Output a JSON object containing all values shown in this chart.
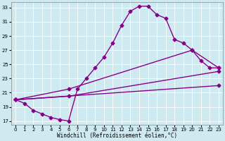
{
  "background_color": "#cfe9f0",
  "line_color": "#880088",
  "marker": "D",
  "markersize": 2.5,
  "linewidth": 1.0,
  "xlabel": "Windchill (Refroidissement éolien,°C)",
  "xlim": [
    -0.5,
    23.5
  ],
  "ylim": [
    16.5,
    33.8
  ],
  "yticks": [
    17,
    19,
    21,
    23,
    25,
    27,
    29,
    31,
    33
  ],
  "xticks": [
    0,
    1,
    2,
    3,
    4,
    5,
    6,
    7,
    8,
    9,
    10,
    11,
    12,
    13,
    14,
    15,
    16,
    17,
    18,
    19,
    20,
    21,
    22,
    23
  ],
  "line1_x": [
    0,
    1,
    2,
    3,
    4,
    5,
    6,
    7,
    8,
    9,
    10,
    11,
    12,
    13,
    14,
    15,
    16,
    17,
    18,
    19,
    20,
    21,
    22,
    23
  ],
  "line1_y": [
    20.0,
    19.5,
    18.5,
    18.0,
    17.5,
    17.2,
    17.0,
    21.5,
    23.0,
    24.5,
    26.0,
    28.0,
    30.5,
    32.5,
    33.2,
    33.2,
    32.0,
    31.5,
    28.5,
    28.0,
    27.0,
    25.5,
    24.5,
    24.5
  ],
  "line2_x": [
    0,
    6,
    20,
    23
  ],
  "line2_y": [
    20.0,
    21.5,
    27.0,
    24.5
  ],
  "line3_x": [
    0,
    6,
    23
  ],
  "line3_y": [
    20.0,
    20.5,
    24.0
  ],
  "line4_x": [
    0,
    23
  ],
  "line4_y": [
    20.0,
    22.0
  ]
}
